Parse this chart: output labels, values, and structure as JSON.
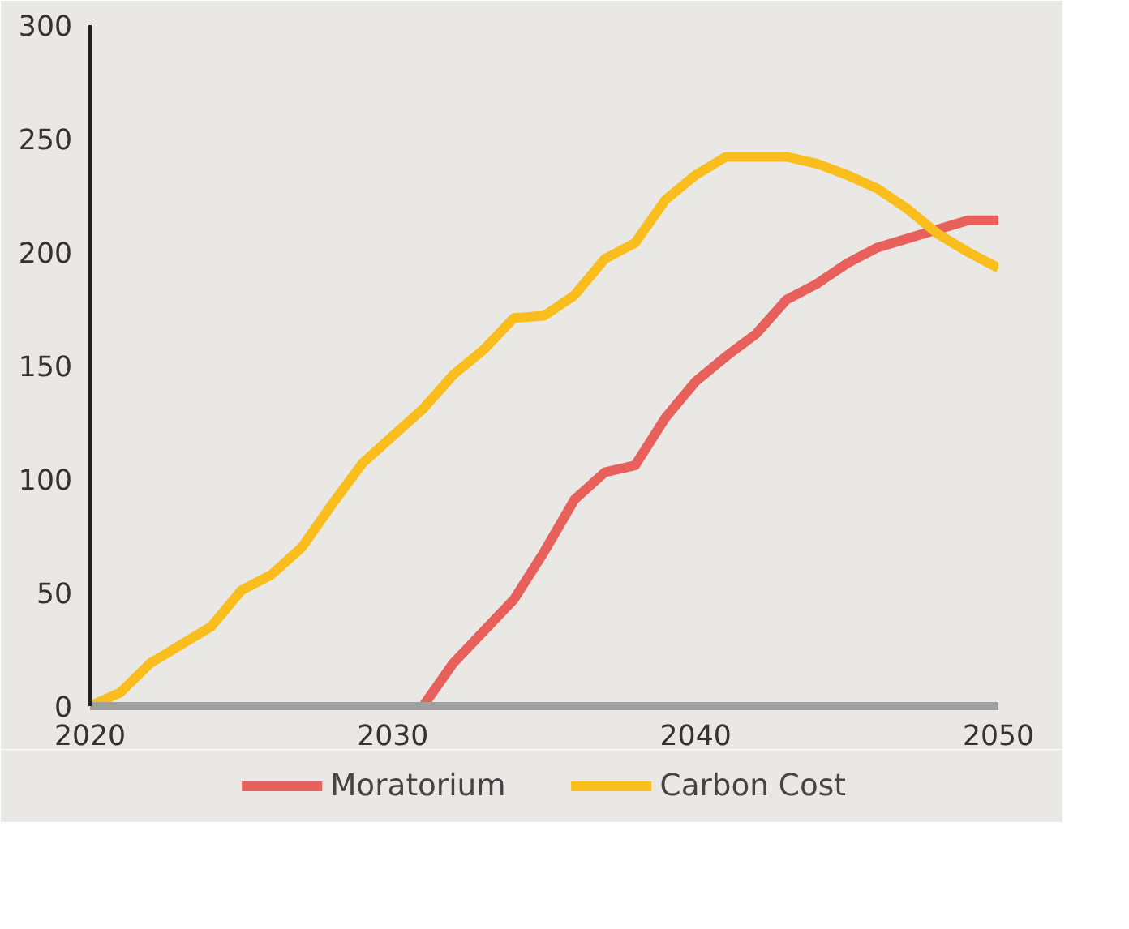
{
  "chart_data": {
    "type": "line",
    "xlim": [
      2020,
      2050
    ],
    "ylim": [
      0,
      300
    ],
    "xticks": [
      2020,
      2030,
      2040,
      2050
    ],
    "yticks": [
      0,
      50,
      100,
      150,
      200,
      250,
      300
    ],
    "legend": "bottom",
    "marker": "none",
    "line_style": "solid",
    "series": [
      {
        "name": "Moratorium",
        "color": "#e8605c",
        "x": [
          2031,
          2032,
          2033,
          2034,
          2035,
          2036,
          2037,
          2038,
          2039,
          2040,
          2041,
          2042,
          2043,
          2044,
          2045,
          2046,
          2047,
          2048,
          2049,
          2050
        ],
        "values": [
          0,
          19,
          33,
          47,
          68,
          91,
          103,
          106,
          127,
          143,
          154,
          164,
          179,
          186,
          195,
          202,
          206,
          210,
          214,
          214
        ]
      },
      {
        "name": "Carbon Cost",
        "color": "#f9be1e",
        "x": [
          2020,
          2021,
          2022,
          2023,
          2024,
          2025,
          2026,
          2027,
          2028,
          2029,
          2030,
          2031,
          2032,
          2033,
          2034,
          2035,
          2036,
          2037,
          2038,
          2039,
          2040,
          2041,
          2042,
          2043,
          2044,
          2045,
          2046,
          2047,
          2048,
          2049,
          2050
        ],
        "values": [
          0,
          6,
          19,
          27,
          35,
          51,
          58,
          70,
          89,
          107,
          119,
          131,
          146,
          157,
          171,
          172,
          181,
          197,
          204,
          223,
          234,
          242,
          242,
          242,
          239,
          234,
          228,
          219,
          208,
          200,
          193
        ]
      }
    ]
  }
}
